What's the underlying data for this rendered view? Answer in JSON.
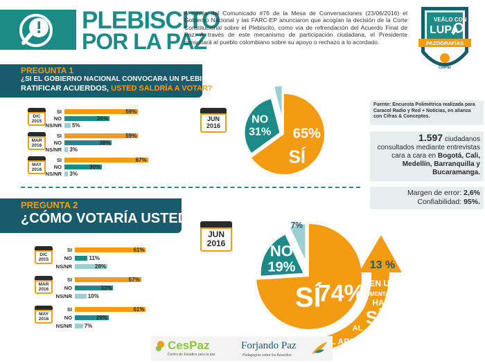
{
  "header": {
    "title_line1": "PLEBISCITO",
    "title_line2": "POR LA PAZ",
    "intro": "A través del Comunicado #76 de la Mesa de Conversaciones (23/06/2016) el Gobierno Nacional y las FARC-EP anunciaron que acogían la decisión de la Corte Constitucional sobre el Plebiscito, como vía de refrendación del Acuerdo Final de Paz. A través de este mecanismo de participación ciudadana, el Presidente consultará al pueblo colombiano sobre su apoyo o rechazo a lo acordado.",
    "badge_line1": "VEÁLO CON",
    "badge_line2": "LUPA",
    "badge_ribbon": "PAZOGRAFÍAS",
    "badge_brand": "CesPaz"
  },
  "colors": {
    "teal_dark": "#1a5b6b",
    "teal": "#1c8a87",
    "teal_light": "#9ccfcf",
    "orange": "#f39c12"
  },
  "section1": {
    "tag": "PREGUNTA 1",
    "question_line1": "¿SI EL GOBIERNO NACIONAL CONVOCARA UN PLEBISCITO PARA",
    "question_line2": "RATIFICAR ACUERDOS,",
    "question_emph": "USTED SALDRÍA A VOTAR?",
    "pie_date_line1": "JUN",
    "pie_date_line2": "2016"
  },
  "section2": {
    "tag": "PREGUNTA 2",
    "question": "¿CÓMO VOTARÍA USTED?",
    "pie_date_line1": "JUN",
    "pie_date_line2": "2016"
  },
  "info": {
    "source": "Fuente: Encuesta Polimétrica realizada para Caracol Radio y Red + Noticias, en alianza con Cifras & Conceptos.",
    "count": "1.597",
    "sample_line1": "ciudadanos",
    "sample_line2": "consultados mediante entrevistas",
    "sample_line3": "cara a cara en",
    "cities_1": "Bogotá, Cali,",
    "cities_2": "Medellín, Barranquilla y",
    "cities_3": "Bucaramanga.",
    "margin_label": "Margen de error:",
    "margin_value": "2,6%",
    "conf_label": "Confiabilidad:",
    "conf_value": "95%."
  },
  "arrow": {
    "pct": "13 %",
    "line1": "EN UN",
    "line2": "AUMENTADO",
    "line3": "HA",
    "line4": "SÍ",
    "line5": "AL",
    "line6": "EL APOYO"
  },
  "footer": {
    "logo1": "CesPaz",
    "logo1_sub": "Centro de Estudios para la paz",
    "logo2": "Forjando Paz",
    "logo2_sub": "Pedagogías sobre los Acuerdos"
  },
  "chart_data": [
    {
      "type": "bar",
      "orientation": "horizontal",
      "title": "¿SI EL GOBIERNO NACIONAL CONVOCARA UN PLEBISCITO PARA RATIFICAR ACUERDOS, USTED SALDRÍA A VOTAR?",
      "groups": [
        {
          "date_line1": "DIC",
          "date_line2": "2015",
          "labels": [
            "SI",
            "NO",
            "NS/NR"
          ],
          "values": [
            59,
            36,
            5
          ]
        },
        {
          "date_line1": "MAR",
          "date_line2": "2016",
          "labels": [
            "SI",
            "NO",
            "NS/NR"
          ],
          "values": [
            59,
            38,
            3
          ]
        },
        {
          "date_line1": "MAY",
          "date_line2": "2016",
          "labels": [
            "SI",
            "NO",
            "NS/NR"
          ],
          "values": [
            67,
            30,
            3
          ]
        }
      ],
      "xlim": [
        0,
        100
      ]
    },
    {
      "type": "pie",
      "date": "JUN 2016",
      "slices": [
        {
          "label": "SÍ",
          "value": 65
        },
        {
          "label": "NO",
          "value": 31
        },
        {
          "label": "NS/NR",
          "value": 4
        }
      ]
    },
    {
      "type": "bar",
      "orientation": "horizontal",
      "title": "¿CÓMO VOTARÍA USTED?",
      "groups": [
        {
          "date_line1": "DIC",
          "date_line2": "2015",
          "labels": [
            "SI",
            "NO",
            "NS/NR"
          ],
          "values": [
            61,
            11,
            28
          ]
        },
        {
          "date_line1": "MAR",
          "date_line2": "2016",
          "labels": [
            "SI",
            "NO",
            "NS/NR"
          ],
          "values": [
            57,
            33,
            10
          ]
        },
        {
          "date_line1": "MAY",
          "date_line2": "2016",
          "labels": [
            "SI",
            "NO",
            "NS/NR"
          ],
          "values": [
            61,
            29,
            7
          ]
        }
      ],
      "xlim": [
        0,
        100
      ]
    },
    {
      "type": "pie",
      "date": "JUN 2016",
      "slices": [
        {
          "label": "SÍ",
          "value": 74
        },
        {
          "label": "NO",
          "value": 19
        },
        {
          "label": "NS/NR",
          "value": 7
        }
      ]
    }
  ]
}
